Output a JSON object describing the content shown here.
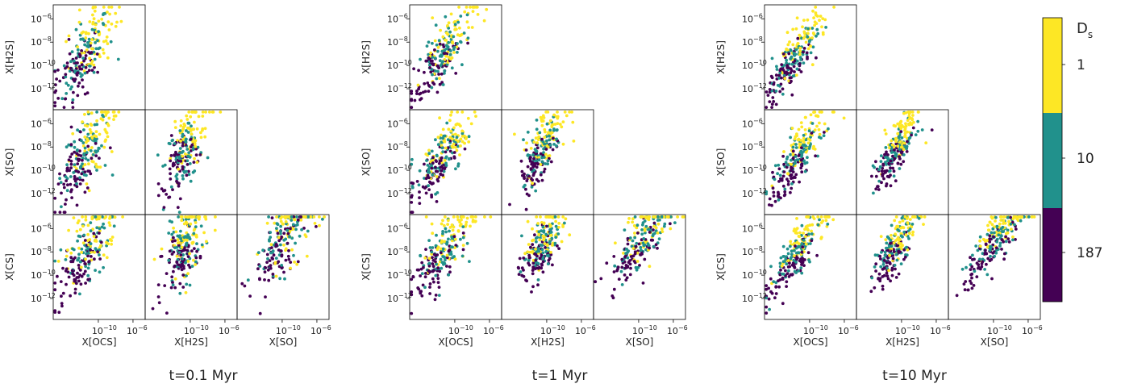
{
  "colors": {
    "yellow": "#fde725",
    "teal": "#21918c",
    "purple": "#440154"
  },
  "colorbar": {
    "title": "D",
    "title_sub": "s",
    "labels": [
      "1",
      "10",
      "187"
    ]
  },
  "tick_labels": {
    "y": [
      "10",
      "10",
      "10",
      "10"
    ],
    "y_exp": [
      "−6",
      "−8",
      "−10",
      "−12"
    ],
    "x": [
      "10",
      "10"
    ],
    "x_exp": [
      "−10",
      "−6"
    ]
  },
  "axis_labels": {
    "rows": [
      "X[H2S]",
      "X[SO]",
      "X[CS]"
    ],
    "cols": [
      "X[OCS]",
      "X[H2S]",
      "X[SO]"
    ]
  },
  "chart_data": [
    {
      "type": "scatter",
      "title": "t=0.1 Myr",
      "pairs": [
        "X[OCS] vs X[H2S]",
        "X[OCS] vs X[SO]",
        "X[H2S] vs X[SO]",
        "X[OCS] vs X[CS]",
        "X[H2S] vs X[CS]",
        "X[SO] vs X[CS]"
      ],
      "y_log_ticks": [
        -6,
        -8,
        -10,
        -12
      ],
      "x_log_ticks": [
        -10,
        -6
      ],
      "color_scale": {
        "variable": "D_s",
        "labels": [
          1,
          10,
          187
        ]
      },
      "log_scale": true
    },
    {
      "type": "scatter",
      "title": "t=1 Myr",
      "pairs": [
        "X[OCS] vs X[H2S]",
        "X[OCS] vs X[SO]",
        "X[H2S] vs X[SO]",
        "X[OCS] vs X[CS]",
        "X[H2S] vs X[CS]",
        "X[SO] vs X[CS]"
      ],
      "y_log_ticks": [
        -6,
        -8,
        -10,
        -12
      ],
      "x_log_ticks": [
        -10,
        -6
      ],
      "color_scale": {
        "variable": "D_s",
        "labels": [
          1,
          10,
          187
        ]
      },
      "log_scale": true
    },
    {
      "type": "scatter",
      "title": "t=10 Myr",
      "pairs": [
        "X[OCS] vs X[H2S]",
        "X[OCS] vs X[SO]",
        "X[H2S] vs X[SO]",
        "X[OCS] vs X[CS]",
        "X[H2S] vs X[CS]",
        "X[SO] vs X[CS]"
      ],
      "y_log_ticks": [
        -6,
        -8,
        -10,
        -12
      ],
      "x_log_ticks": [
        -10,
        -6
      ],
      "color_scale": {
        "variable": "D_s",
        "labels": [
          1,
          10,
          187
        ]
      },
      "log_scale": true
    }
  ]
}
